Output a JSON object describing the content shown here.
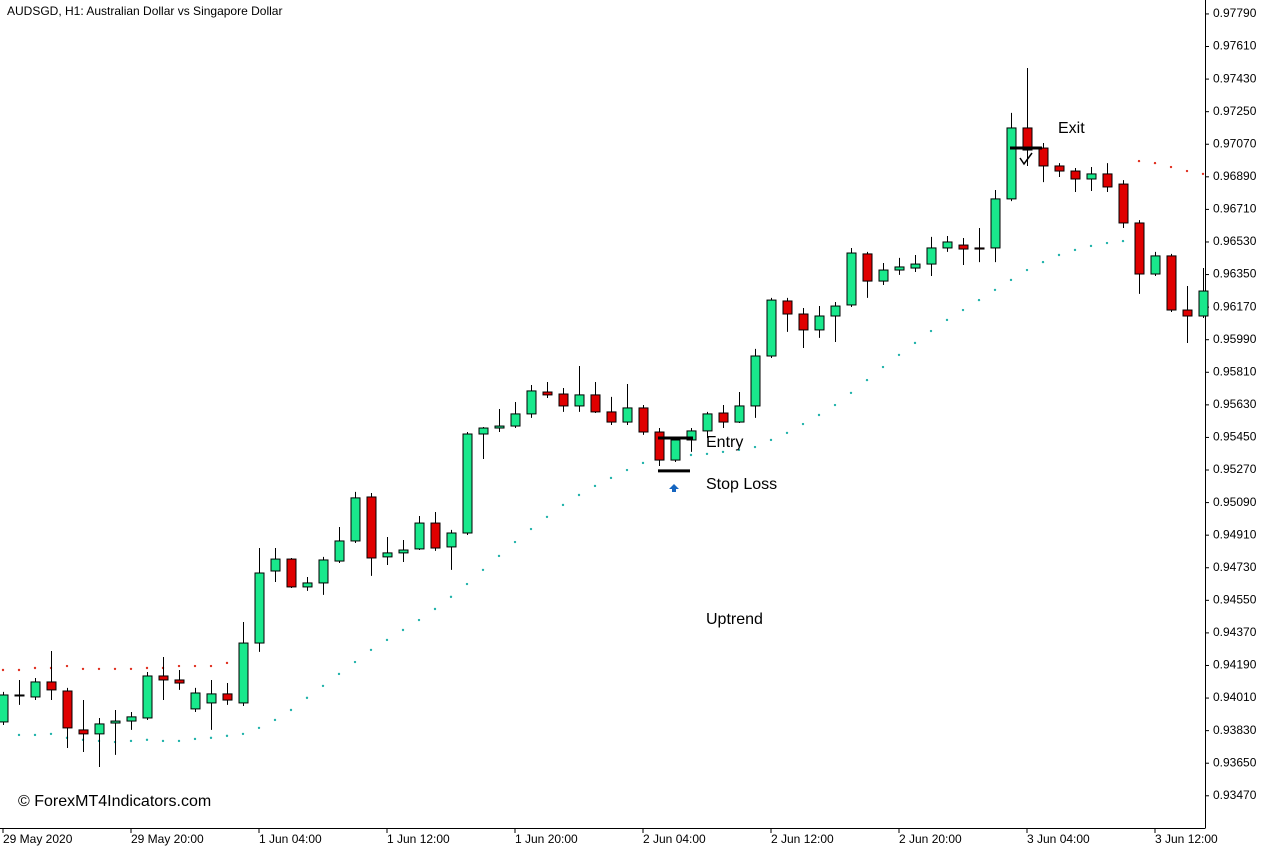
{
  "chart_data": {
    "type": "candlestick",
    "title": "AUDSGD, H1:  Australian Dollar vs Singapore Dollar",
    "categories": [
      "29 May 2020",
      null,
      null,
      null,
      null,
      null,
      null,
      null,
      "29 May 20:00",
      null,
      null,
      null,
      null,
      null,
      null,
      null,
      "1 Jun 04:00",
      null,
      null,
      null,
      null,
      null,
      null,
      null,
      "1 Jun 12:00",
      null,
      null,
      null,
      null,
      null,
      null,
      null,
      "1 Jun 20:00",
      null,
      null,
      null,
      null,
      null,
      null,
      null,
      "2 Jun 04:00",
      null,
      null,
      null,
      null,
      null,
      null,
      null,
      "2 Jun 12:00",
      null,
      null,
      null,
      null,
      null,
      null,
      null,
      "2 Jun 20:00",
      null,
      null,
      null,
      null,
      null,
      null,
      null,
      "3 Jun 04:00",
      null,
      null,
      null,
      null,
      null,
      null,
      null,
      "3 Jun 12:00",
      null,
      null,
      null
    ],
    "open": [
      0.93878,
      0.94022,
      0.94016,
      0.94099,
      0.94049,
      0.93834,
      0.93812,
      0.93872,
      0.93883,
      0.939,
      0.94132,
      0.9411,
      0.9395,
      0.93983,
      0.94033,
      0.93983,
      0.94314,
      0.94712,
      0.94778,
      0.94624,
      0.94646,
      0.94767,
      0.94878,
      0.95121,
      0.9479,
      0.94812,
      0.94834,
      0.94977,
      0.94845,
      0.94922,
      0.95469,
      0.95502,
      0.95513,
      0.9558,
      0.95701,
      0.9569,
      0.95624,
      0.95685,
      0.95591,
      0.95535,
      0.95613,
      0.9548,
      0.95325,
      0.95436,
      0.95486,
      0.95585,
      0.95535,
      0.95624,
      0.959,
      0.96204,
      0.96132,
      0.96044,
      0.96121,
      0.96182,
      0.96464,
      0.96314,
      0.96375,
      0.96386,
      0.96408,
      0.96497,
      0.96513,
      0.96497,
      0.96497,
      0.96768,
      0.9716,
      0.97049,
      0.9695,
      0.96922,
      0.96878,
      0.96906,
      0.9685,
      0.96635,
      0.96353,
      0.96453,
      0.96154,
      0.96121
    ],
    "high": [
      0.94044,
      0.9411,
      0.94121,
      0.9427,
      0.94066,
      0.93999,
      0.939,
      0.93944,
      0.93933,
      0.94154,
      0.94237,
      0.94165,
      0.94066,
      0.9411,
      0.94093,
      0.9443,
      0.94839,
      0.94839,
      0.94784,
      0.94679,
      0.9479,
      0.94955,
      0.95149,
      0.95143,
      0.949,
      0.94883,
      0.95016,
      0.95038,
      0.94939,
      0.9548,
      0.95508,
      0.95607,
      0.95646,
      0.9574,
      0.95756,
      0.95723,
      0.95845,
      0.95756,
      0.95674,
      0.95745,
      0.95629,
      0.95502,
      0.95447,
      0.95502,
      0.95591,
      0.95629,
      0.95701,
      0.95939,
      0.96221,
      0.96221,
      0.96165,
      0.96176,
      0.96198,
      0.96497,
      0.96475,
      0.96414,
      0.96442,
      0.96458,
      0.96558,
      0.96563,
      0.96552,
      0.96607,
      0.96817,
      0.97243,
      0.97491,
      0.97077,
      0.96966,
      0.96939,
      0.96944,
      0.96966,
      0.96872,
      0.96651,
      0.96475,
      0.96464,
      0.96287,
      0.96386
    ],
    "low": [
      0.93861,
      0.93972,
      0.93999,
      0.93999,
      0.93734,
      0.93712,
      0.93629,
      0.93696,
      0.93834,
      0.93889,
      0.93999,
      0.94055,
      0.93933,
      0.93834,
      0.93972,
      0.93966,
      0.94265,
      0.94651,
      0.94618,
      0.94602,
      0.9458,
      0.94756,
      0.94867,
      0.94685,
      0.94745,
      0.94762,
      0.94828,
      0.94823,
      0.94718,
      0.94911,
      0.95331,
      0.9548,
      0.95502,
      0.95558,
      0.95668,
      0.95591,
      0.95591,
      0.95585,
      0.95519,
      0.95519,
      0.95464,
      0.95292,
      0.95314,
      0.9537,
      0.95447,
      0.95502,
      0.9553,
      0.95558,
      0.95889,
      0.96033,
      0.95944,
      0.96,
      0.95977,
      0.96171,
      0.96221,
      0.96292,
      0.96348,
      0.96364,
      0.96342,
      0.96475,
      0.96403,
      0.96419,
      0.96419,
      0.96756,
      0.9695,
      0.96861,
      0.96889,
      0.96806,
      0.96812,
      0.96806,
      0.96607,
      0.96243,
      0.96342,
      0.96143,
      0.95972,
      0.9611
    ],
    "close": [
      0.94027,
      0.94027,
      0.94099,
      0.94055,
      0.93845,
      0.93812,
      0.93867,
      0.93883,
      0.93906,
      0.94132,
      0.9411,
      0.94093,
      0.94038,
      0.94033,
      0.93999,
      0.94314,
      0.94701,
      0.94778,
      0.94624,
      0.94646,
      0.94773,
      0.94878,
      0.95116,
      0.94784,
      0.94812,
      0.94828,
      0.94977,
      0.94839,
      0.94922,
      0.95469,
      0.95502,
      0.95513,
      0.9558,
      0.95707,
      0.95685,
      0.95624,
      0.95685,
      0.95591,
      0.95535,
      0.95613,
      0.9548,
      0.95325,
      0.95436,
      0.95486,
      0.9558,
      0.95535,
      0.95624,
      0.959,
      0.96209,
      0.96132,
      0.96044,
      0.96121,
      0.96176,
      0.96469,
      0.96314,
      0.96375,
      0.96392,
      0.96408,
      0.96497,
      0.9653,
      0.96491,
      0.96491,
      0.96768,
      0.9716,
      0.97038,
      0.9695,
      0.96922,
      0.96878,
      0.96906,
      0.96834,
      0.96635,
      0.96353,
      0.96453,
      0.96154,
      0.96121,
      0.96259
    ],
    "up_color": "#19e88c",
    "down_color": "#e00000",
    "indicator": {
      "upper_color": "#e03020",
      "lower_color": "#20b2aa",
      "upper": [
        0.94165,
        0.94165,
        0.94176,
        0.94176,
        0.94187,
        0.94171,
        0.94171,
        0.94171,
        0.94171,
        0.94176,
        0.94176,
        0.94187,
        0.94187,
        0.94187,
        0.94204,
        null,
        null,
        null,
        null,
        null,
        null,
        null,
        null,
        null,
        null,
        null,
        null,
        null,
        null,
        null,
        null,
        null,
        null,
        null,
        null,
        null,
        null,
        null,
        null,
        null,
        null,
        null,
        null,
        null,
        null,
        null,
        null,
        null,
        null,
        null,
        null,
        null,
        null,
        null,
        null,
        null,
        null,
        null,
        null,
        null,
        null,
        null,
        null,
        null,
        null,
        null,
        null,
        null,
        null,
        null,
        null,
        0.96977,
        0.96966,
        0.96944,
        0.96922,
        0.96906
      ],
      "lower": [
        null,
        0.93806,
        0.93806,
        0.93812,
        0.9379,
        0.93779,
        0.93773,
        0.93767,
        0.93773,
        0.93779,
        0.93773,
        0.93773,
        0.93784,
        0.9379,
        0.93801,
        0.93812,
        0.93845,
        0.93889,
        0.93944,
        0.94011,
        0.94077,
        0.94143,
        0.94209,
        0.94276,
        0.94331,
        0.94386,
        0.94441,
        0.94502,
        0.94569,
        0.9464,
        0.94718,
        0.94795,
        0.94872,
        0.94944,
        0.95011,
        0.95077,
        0.95132,
        0.95182,
        0.95226,
        0.9527,
        0.95309,
        0.95342,
        0.95348,
        0.95353,
        0.95359,
        0.9537,
        0.95381,
        0.95397,
        0.95436,
        0.95475,
        0.95524,
        0.95574,
        0.95629,
        0.95696,
        0.95767,
        0.95839,
        0.95906,
        0.95972,
        0.96038,
        0.96099,
        0.96154,
        0.96209,
        0.96265,
        0.9632,
        0.96375,
        0.96419,
        0.96458,
        0.96486,
        0.96508,
        0.96524,
        0.96535,
        null,
        null,
        null,
        null,
        null
      ]
    },
    "ylim": [
      0.93292,
      0.97867
    ],
    "yticks": [
      {
        "value": 0.9779,
        "label": "0.97790"
      },
      {
        "value": 0.9761,
        "label": "0.97610"
      },
      {
        "value": 0.9743,
        "label": "0.97430"
      },
      {
        "value": 0.9725,
        "label": "0.97250"
      },
      {
        "value": 0.9707,
        "label": "0.97070"
      },
      {
        "value": 0.9689,
        "label": "0.96890"
      },
      {
        "value": 0.9671,
        "label": "0.96710"
      },
      {
        "value": 0.9653,
        "label": "0.96530"
      },
      {
        "value": 0.9635,
        "label": "0.96350"
      },
      {
        "value": 0.9617,
        "label": "0.96170"
      },
      {
        "value": 0.9599,
        "label": "0.95990"
      },
      {
        "value": 0.9581,
        "label": "0.95810"
      },
      {
        "value": 0.9563,
        "label": "0.95630"
      },
      {
        "value": 0.9545,
        "label": "0.95450"
      },
      {
        "value": 0.9527,
        "label": "0.95270"
      },
      {
        "value": 0.9509,
        "label": "0.95090"
      },
      {
        "value": 0.9491,
        "label": "0.94910"
      },
      {
        "value": 0.9473,
        "label": "0.94730"
      },
      {
        "value": 0.9455,
        "label": "0.94550"
      },
      {
        "value": 0.9437,
        "label": "0.94370"
      },
      {
        "value": 0.9419,
        "label": "0.94190"
      },
      {
        "value": 0.9401,
        "label": "0.94010"
      },
      {
        "value": 0.9383,
        "label": "0.93830"
      },
      {
        "value": 0.9365,
        "label": "0.93650"
      },
      {
        "value": 0.9347,
        "label": "0.93470"
      }
    ],
    "annotations": [
      {
        "text": "Entry",
        "value": 0.95447
      },
      {
        "text": "Stop Loss",
        "value": 0.95265
      },
      {
        "text": "Exit",
        "value": 0.97049
      },
      {
        "text": "Uptrend"
      }
    ],
    "watermark": "© ForexMT4Indicators.com"
  }
}
